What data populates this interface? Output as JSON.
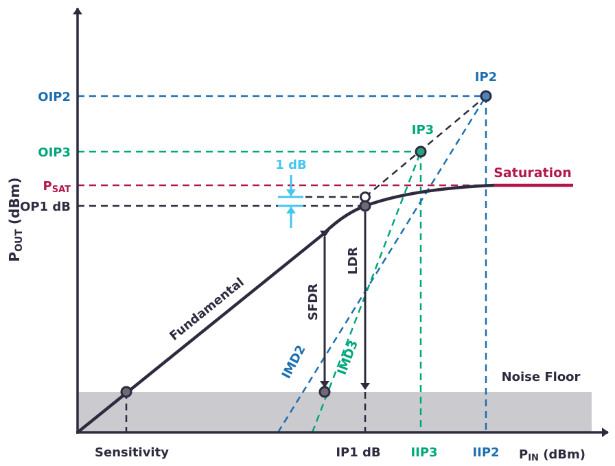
{
  "colors": {
    "dark": "#2e2b3f",
    "blue": "#1b6fb0",
    "green": "#00a77a",
    "red": "#b1174b",
    "light_blue": "#43c6ef",
    "noise": "#cbcacf"
  },
  "labels": {
    "ip2": "IP2",
    "ip3": "IP3",
    "oip2": "OIP2",
    "oip3": "OIP3",
    "psat_main": "P",
    "psat_sub": "SAT",
    "op1db": "OP1 dB",
    "one_db": "1 dB",
    "saturation": "Saturation",
    "noise_floor": "Noise Floor",
    "fundamental": "Fundamental",
    "sfdr": "SFDR",
    "ldr": "LDR",
    "imd2": "IMD2",
    "imd3": "IMD3",
    "sensitivity": "Sensitivity",
    "ip1db": "IP1 dB",
    "iip3": "IIP3",
    "iip2": "IIP2",
    "xaxis_main": "P",
    "xaxis_sub": "IN",
    "xaxis_unit": " (dBm)",
    "yaxis_main": "P",
    "yaxis_sub": "OUT",
    "yaxis_unit": " (dBm)"
  }
}
